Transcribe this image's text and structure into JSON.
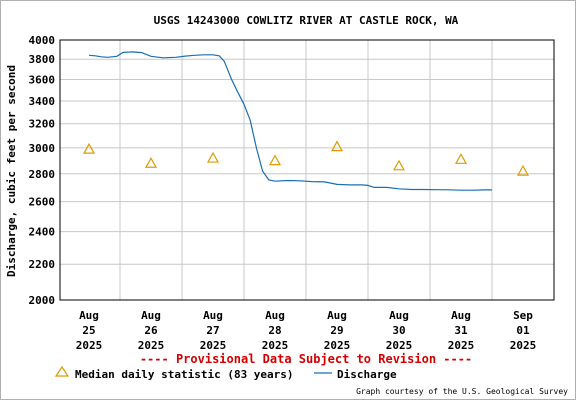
{
  "chart_data": {
    "type": "line",
    "title": "USGS 14243000 COWLITZ RIVER AT CASTLE ROCK, WA",
    "ylabel": "Discharge, cubic feet per second",
    "xlabel": "",
    "y_scale": "log",
    "ylim": [
      2000,
      4000
    ],
    "y_ticks": [
      "2000",
      "2200",
      "2400",
      "2600",
      "2800",
      "3000",
      "3200",
      "3400",
      "3600",
      "3800",
      "4000"
    ],
    "x_ticks": [
      {
        "month": "Aug",
        "day": "25",
        "year": "2025"
      },
      {
        "month": "Aug",
        "day": "26",
        "year": "2025"
      },
      {
        "month": "Aug",
        "day": "27",
        "year": "2025"
      },
      {
        "month": "Aug",
        "day": "28",
        "year": "2025"
      },
      {
        "month": "Aug",
        "day": "29",
        "year": "2025"
      },
      {
        "month": "Aug",
        "day": "30",
        "year": "2025"
      },
      {
        "month": "Aug",
        "day": "31",
        "year": "2025"
      },
      {
        "month": "Sep",
        "day": "01",
        "year": "2025"
      }
    ],
    "grid": true,
    "colors": {
      "discharge": "#1a6fb0",
      "median": "#e09a00",
      "notice": "#d40000",
      "grid": "#c8c8c8"
    },
    "series": [
      {
        "name": "Discharge",
        "type": "line",
        "x_unit": "days since Aug 25 2025 00:00",
        "points": [
          [
            0.0,
            3840
          ],
          [
            0.1,
            3835
          ],
          [
            0.2,
            3825
          ],
          [
            0.3,
            3820
          ],
          [
            0.45,
            3830
          ],
          [
            0.55,
            3870
          ],
          [
            0.7,
            3875
          ],
          [
            0.85,
            3868
          ],
          [
            1.0,
            3830
          ],
          [
            1.2,
            3815
          ],
          [
            1.4,
            3820
          ],
          [
            1.55,
            3832
          ],
          [
            1.7,
            3840
          ],
          [
            1.85,
            3845
          ],
          [
            2.0,
            3845
          ],
          [
            2.1,
            3835
          ],
          [
            2.18,
            3780
          ],
          [
            2.3,
            3600
          ],
          [
            2.4,
            3480
          ],
          [
            2.5,
            3370
          ],
          [
            2.6,
            3230
          ],
          [
            2.7,
            3000
          ],
          [
            2.8,
            2820
          ],
          [
            2.9,
            2755
          ],
          [
            3.0,
            2745
          ],
          [
            3.2,
            2750
          ],
          [
            3.4,
            2748
          ],
          [
            3.6,
            2742
          ],
          [
            3.8,
            2740
          ],
          [
            4.0,
            2722
          ],
          [
            4.2,
            2718
          ],
          [
            4.4,
            2718
          ],
          [
            4.5,
            2715
          ],
          [
            4.6,
            2700
          ],
          [
            4.8,
            2700
          ],
          [
            5.0,
            2690
          ],
          [
            5.2,
            2685
          ],
          [
            5.4,
            2685
          ],
          [
            5.6,
            2684
          ],
          [
            5.8,
            2683
          ],
          [
            6.0,
            2680
          ],
          [
            6.2,
            2680
          ],
          [
            6.4,
            2682
          ],
          [
            6.5,
            2682
          ]
        ]
      },
      {
        "name": "Median daily statistic (83 years)",
        "type": "scatter",
        "x": [
          "2025-08-25",
          "2025-08-26",
          "2025-08-27",
          "2025-08-28",
          "2025-08-29",
          "2025-08-30",
          "2025-08-31",
          "2025-09-01"
        ],
        "values": [
          2990,
          2880,
          2920,
          2900,
          3010,
          2860,
          2910,
          2820
        ]
      }
    ],
    "legend_position": "bottom"
  },
  "notice": "---- Provisional Data Subject to Revision ----",
  "legend": {
    "median_label": "Median daily statistic (83 years)",
    "discharge_label": "Discharge"
  },
  "credit": "Graph courtesy of the U.S. Geological Survey"
}
